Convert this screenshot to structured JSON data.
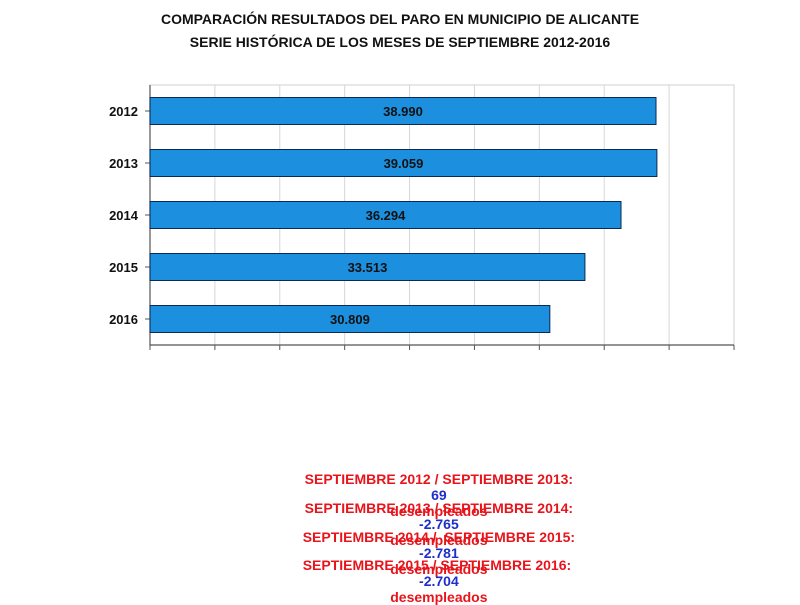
{
  "title": "COMPARACIÓN RESULTADOS DEL PARO EN  MUNICIPIO DE ALICANTE",
  "subtitle": "SERIE HISTÓRICA DE LOS MESES DE SEPTIEMBRE 2012-2016",
  "colors": {
    "bar": "#1c8fdf",
    "bar_border": "#0a2a55",
    "comparison_text": "#e8141c",
    "comparison_value": "#1f2ec8"
  },
  "chart_data": {
    "type": "bar",
    "orientation": "horizontal",
    "title": "COMPARACIÓN RESULTADOS DEL PARO EN  MUNICIPIO DE ALICANTE",
    "subtitle": "SERIE HISTÓRICA DE LOS MESES DE SEPTIEMBRE 2012-2016",
    "categories": [
      "2012",
      "2013",
      "2014",
      "2015",
      "2016"
    ],
    "values": [
      38990,
      39059,
      36294,
      33513,
      30809
    ],
    "value_labels": [
      "38.990",
      "39.059",
      "36.294",
      "33.513",
      "30.809"
    ],
    "xlim": [
      0,
      45000
    ],
    "grid": true,
    "legend": "none"
  },
  "comparisons": [
    {
      "label": "SEPTIEMBRE 2012 / SEPTIEMBRE 2013:",
      "value": "69",
      "unit": "desempleados"
    },
    {
      "label": "SEPTIEMBRE 2013 / SEPTIEMBRE 2014:",
      "value": "-2.765",
      "unit": "desempleados"
    },
    {
      "label": "SEPTIEMBRE 2014 /  SEPTIEMBRE 2015:",
      "value": "-2.781",
      "unit": "desempleados"
    },
    {
      "label": "SEPTIEMBRE 2015 / SEPTIEMBRE 2016: ",
      "value": "-2.704",
      "unit": "desempleados"
    }
  ]
}
